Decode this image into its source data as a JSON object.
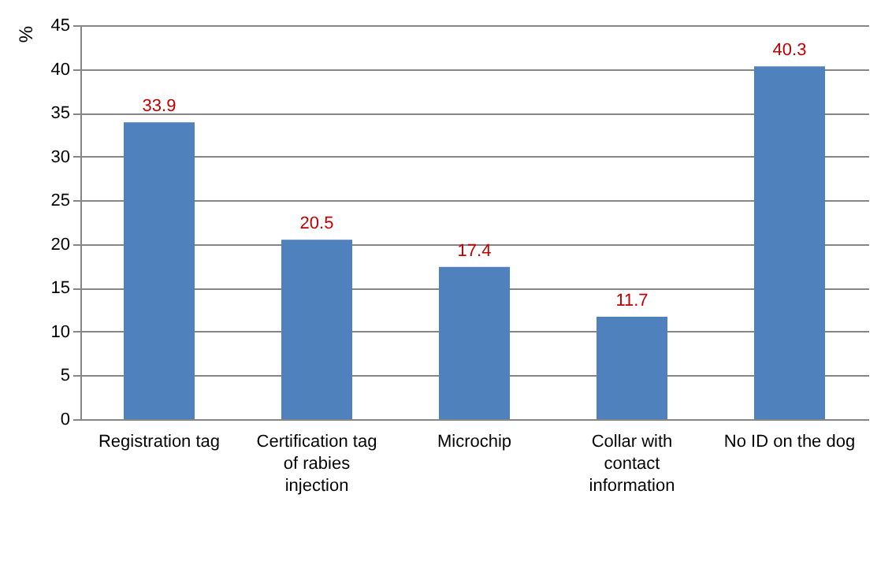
{
  "chart_data": {
    "type": "bar",
    "ylabel": "%",
    "categories": [
      "Registration tag",
      "Certification tag of rabies injection",
      "Microchip",
      "Collar with contact information",
      "No ID on the dog"
    ],
    "values": [
      33.9,
      20.5,
      17.4,
      11.7,
      40.3
    ],
    "color": "#4f81bd",
    "ylim": [
      0,
      45
    ],
    "yticks": [
      0,
      5,
      10,
      15,
      20,
      25,
      30,
      35,
      40,
      45
    ],
    "grid": "y",
    "data_labels": true
  }
}
